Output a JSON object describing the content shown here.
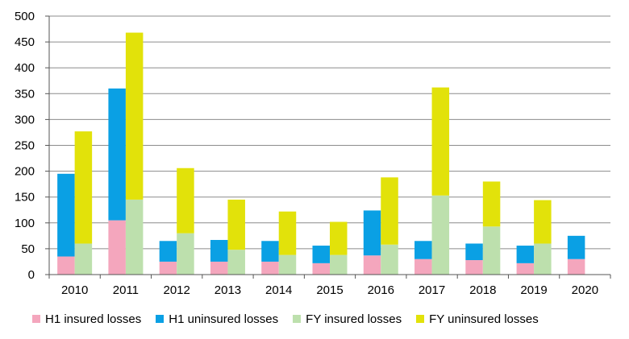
{
  "chart_data": {
    "type": "bar",
    "title": "",
    "xlabel": "",
    "ylabel": "",
    "ylim": [
      0,
      500
    ],
    "yticks": [
      "0",
      "50",
      "100",
      "150",
      "200",
      "250",
      "300",
      "350",
      "400",
      "450",
      "500"
    ],
    "categories": [
      "2010",
      "2011",
      "2012",
      "2013",
      "2014",
      "2015",
      "2016",
      "2017",
      "2018",
      "2019",
      "2020"
    ],
    "grid": "horizontal",
    "legend_position": "bottom",
    "stacks": [
      {
        "name": "H1",
        "series": [
          "H1 insured losses",
          "H1 uninsured losses"
        ]
      },
      {
        "name": "FY",
        "series": [
          "FY insured losses",
          "FY uninsured losses"
        ]
      }
    ],
    "series": [
      {
        "name": "H1 insured losses",
        "color": "#f4a6bd",
        "values": [
          35,
          105,
          25,
          25,
          25,
          22,
          37,
          30,
          28,
          22,
          30
        ]
      },
      {
        "name": "H1 uninsured losses",
        "color": "#0aa0e4",
        "values": [
          160,
          255,
          40,
          42,
          40,
          34,
          87,
          35,
          32,
          34,
          45
        ]
      },
      {
        "name": "FY insured losses",
        "color": "#bde0ad",
        "values": [
          60,
          145,
          80,
          48,
          38,
          38,
          58,
          153,
          93,
          60,
          null
        ]
      },
      {
        "name": "FY uninsured losses",
        "color": "#e2e20a",
        "values": [
          217,
          323,
          126,
          97,
          84,
          64,
          130,
          209,
          87,
          84,
          null
        ]
      }
    ]
  }
}
